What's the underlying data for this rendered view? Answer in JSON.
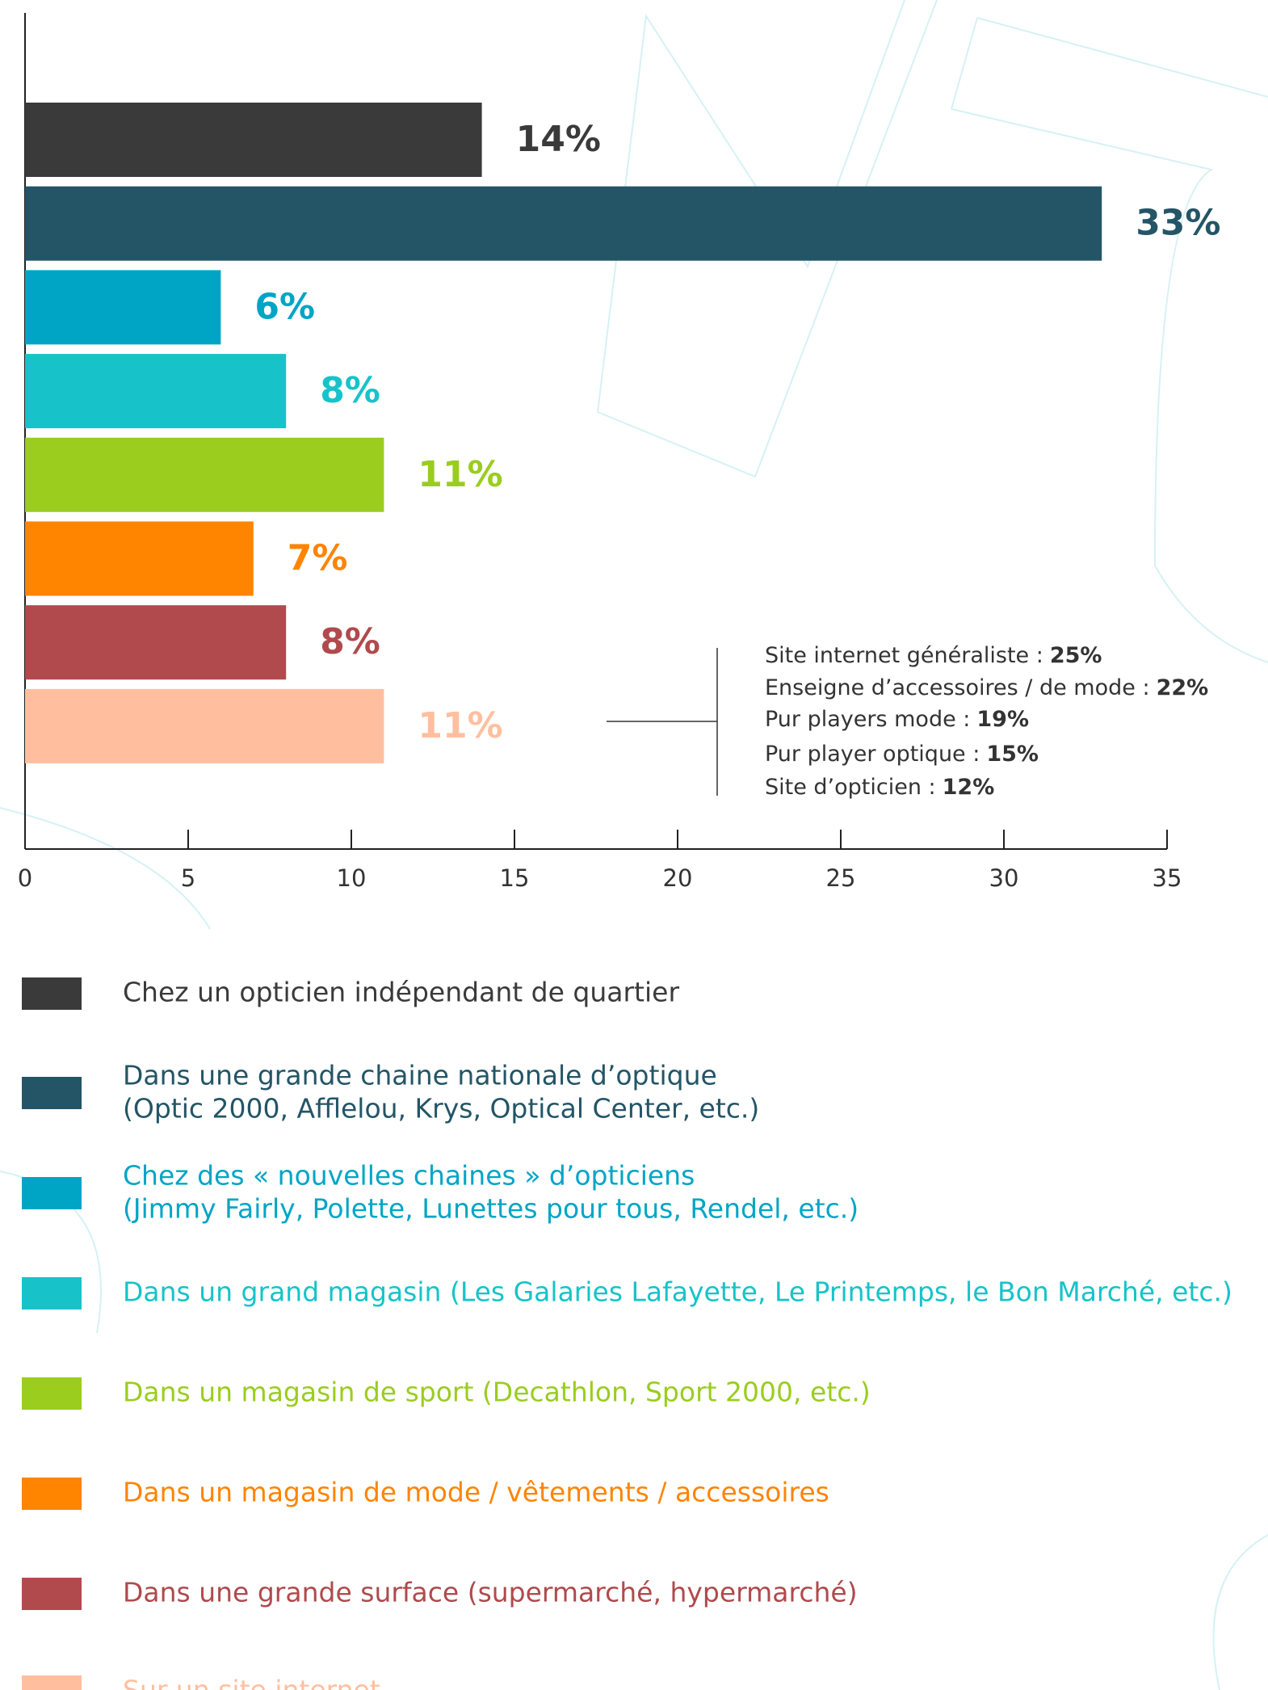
{
  "chart_data": {
    "type": "barh",
    "categories": [
      "Chez un opticien indépendant de quartier",
      "Dans une grande chaine nationale d’optique\n(Optic 2000, Afflelou, Krys, Optical Center, etc.)",
      "Chez des « nouvelles chaines » d’opticiens\n(Jimmy Fairly, Polette, Lunettes pour tous, Rendel, etc.)",
      "Dans un grand magasin (Les Galaries Lafayette, Le Printemps, le Bon Marché, etc.)",
      "Dans un magasin de sport (Decathlon, Sport 2000, etc.)",
      "Dans un magasin de mode / vêtements / accessoires",
      "Dans une grande surface (supermarché, hypermarché)",
      "Sur un site internet"
    ],
    "values": [
      14,
      33,
      6,
      8,
      11,
      7,
      8,
      11
    ],
    "value_labels": [
      "14%",
      "33%",
      "6%",
      "8%",
      "11%",
      "7%",
      "8%",
      "11%"
    ],
    "colors": [
      "#3a3a3a",
      "#235566",
      "#00a5c6",
      "#17c3c9",
      "#9acd1e",
      "#ff8400",
      "#b04a4d",
      "#ffbf9f"
    ],
    "xlim": [
      0,
      35
    ],
    "xticks": [
      0,
      5,
      10,
      15,
      20,
      25,
      30,
      35
    ],
    "annotation": [
      {
        "label": "Site internet généraliste :",
        "value_label": "25%"
      },
      {
        "label": "Enseigne d’accessoires / de mode :",
        "value_label": "22%"
      },
      {
        "label": "Pur players mode :",
        "value_label": "19%"
      },
      {
        "label": "Pur player optique :",
        "value_label": "15%"
      },
      {
        "label": "Site d’opticien :",
        "value_label": "12%"
      }
    ]
  }
}
